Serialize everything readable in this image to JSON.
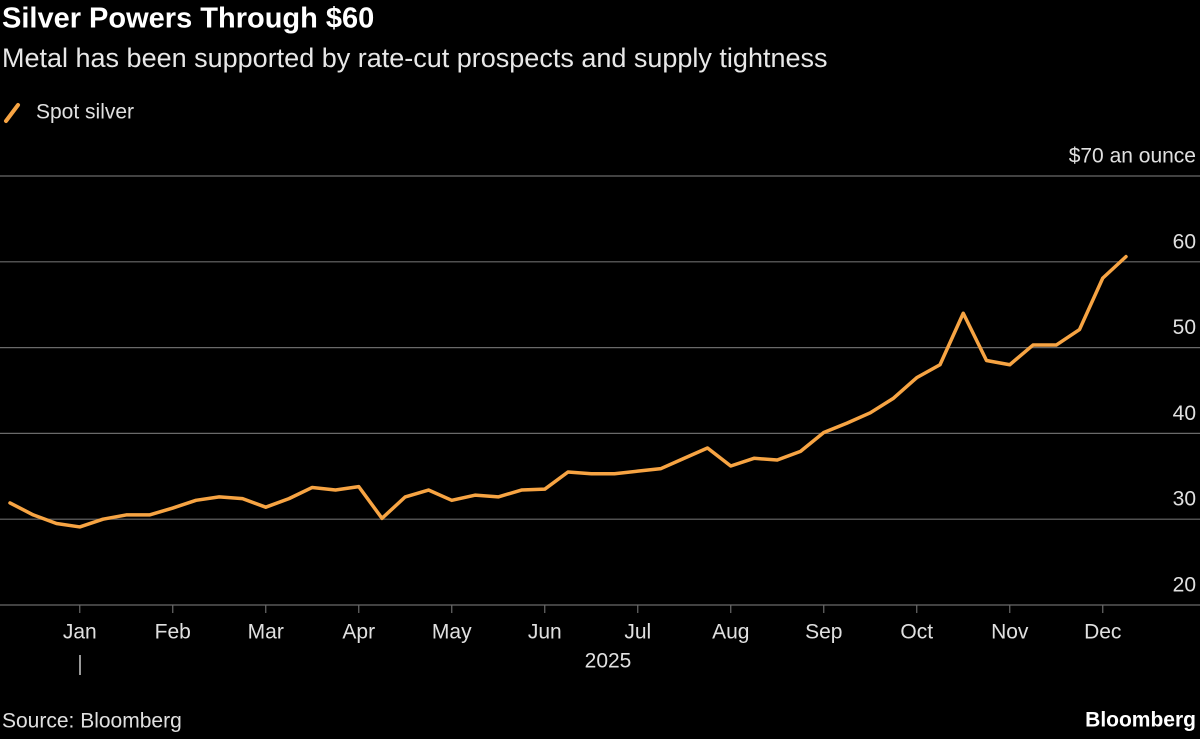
{
  "chart_data": {
    "type": "line",
    "title": "Silver Powers Through $60",
    "subtitle": "Metal has been supported by rate-cut prospects and supply tightness",
    "source": "Source: Bloomberg",
    "brand": "Bloomberg",
    "year_label": "2025",
    "categories": [
      null,
      null,
      null,
      "Jan",
      null,
      null,
      null,
      "Feb",
      null,
      null,
      null,
      "Mar",
      null,
      null,
      null,
      "Apr",
      null,
      null,
      null,
      "May",
      null,
      null,
      null,
      "Jun",
      null,
      null,
      null,
      "Jul",
      null,
      null,
      null,
      "Aug",
      null,
      null,
      null,
      "Sep",
      null,
      null,
      null,
      "Oct",
      null,
      null,
      null,
      "Nov",
      null,
      null,
      null,
      "Dec",
      null
    ],
    "series": [
      {
        "name": "Spot silver",
        "color": "#f7a443",
        "values": [
          31.9,
          30.5,
          29.5,
          29.1,
          30.0,
          30.5,
          30.5,
          31.3,
          32.2,
          32.6,
          32.4,
          31.4,
          32.4,
          33.7,
          33.4,
          33.8,
          30.1,
          32.6,
          33.4,
          32.2,
          32.8,
          32.6,
          33.4,
          33.5,
          35.5,
          35.3,
          35.3,
          35.6,
          35.9,
          37.1,
          38.3,
          36.2,
          37.1,
          36.9,
          37.9,
          40.1,
          41.2,
          42.4,
          44.1,
          46.5,
          48.0,
          54.0,
          48.5,
          48.0,
          50.3,
          50.3,
          52.1,
          58.1,
          60.6
        ]
      }
    ],
    "ylim": [
      20,
      70
    ],
    "yticks": [
      20,
      30,
      40,
      50,
      60,
      {
        "value": 70,
        "label": "$70 an ounce"
      }
    ],
    "grid": true
  }
}
